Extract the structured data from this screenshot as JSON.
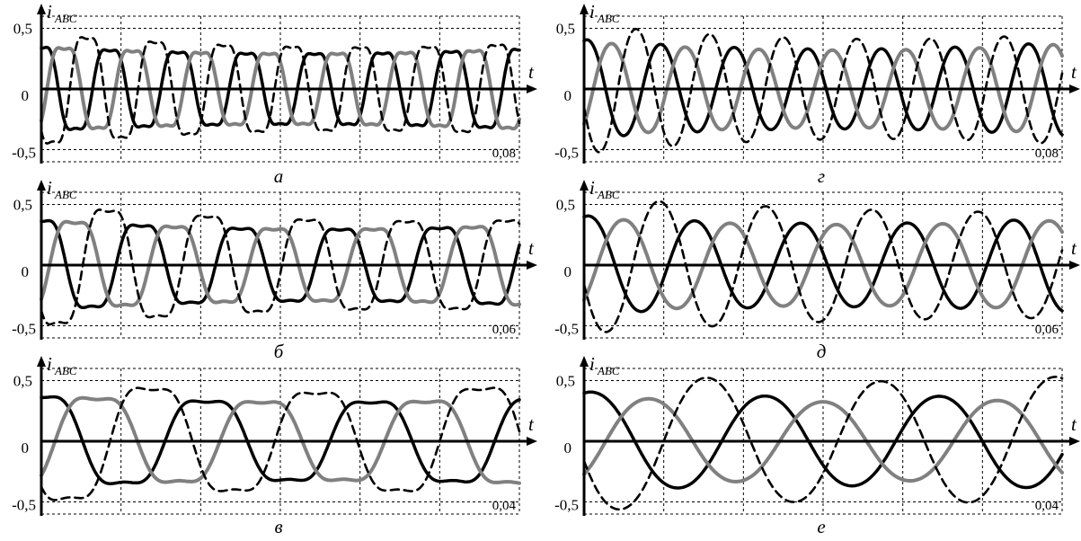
{
  "figure": {
    "ylabel_main": "i",
    "ylabel_sub": "ABC",
    "xlabel": "t",
    "colors": {
      "phase_a": "#000000",
      "phase_b": "#808080",
      "phase_c": "#000000",
      "grid": "#000000"
    }
  },
  "chart_data": [
    {
      "panel": "a",
      "caption": "а",
      "type": "line",
      "xmax_label": "0,08",
      "x_range": [
        0,
        0.08
      ],
      "ylim": [
        -0.6,
        0.6
      ],
      "y_ticks": [
        "0,5",
        "0",
        "-0,5"
      ],
      "grid": true,
      "vertical_divisions": 6,
      "series": [
        {
          "style": "solid-black",
          "periods": 7,
          "phase_deg": 90,
          "amp_start": 0.42,
          "amp_mid": 0.3,
          "amp_end": 0.4,
          "distortion": 0.35
        },
        {
          "style": "solid-gray",
          "periods": 7,
          "phase_deg": -30,
          "amp_start": 0.42,
          "amp_mid": 0.3,
          "amp_end": 0.4,
          "distortion": 0.35
        },
        {
          "style": "dashed-black",
          "periods": 7,
          "phase_deg": 210,
          "amp_start": 0.55,
          "amp_mid": 0.35,
          "amp_end": 0.45,
          "distortion": 0.35
        }
      ]
    },
    {
      "panel": "g",
      "caption": "г",
      "type": "line",
      "xmax_label": "0,08",
      "x_range": [
        0,
        0.08
      ],
      "ylim": [
        -0.6,
        0.6
      ],
      "y_ticks": [
        "0,5",
        "0",
        "-0,5"
      ],
      "grid": true,
      "vertical_divisions": 6,
      "series": [
        {
          "style": "solid-black",
          "periods": 6.5,
          "phase_deg": 75,
          "amp_start": 0.42,
          "amp_mid": 0.27,
          "amp_end": 0.4,
          "distortion": 0.05
        },
        {
          "style": "solid-gray",
          "periods": 6.5,
          "phase_deg": -45,
          "amp_start": 0.4,
          "amp_mid": 0.27,
          "amp_end": 0.38,
          "distortion": 0.05
        },
        {
          "style": "dashed-black",
          "periods": 6.5,
          "phase_deg": 195,
          "amp_start": 0.55,
          "amp_mid": 0.35,
          "amp_end": 0.47,
          "distortion": 0.05
        }
      ]
    },
    {
      "panel": "b",
      "caption": "б",
      "type": "line",
      "xmax_label": "0,06",
      "x_range": [
        0,
        0.06
      ],
      "ylim": [
        -0.6,
        0.6
      ],
      "y_ticks": [
        "0,5",
        "0",
        "-0,5"
      ],
      "grid": true,
      "vertical_divisions": 6,
      "series": [
        {
          "style": "solid-black",
          "periods": 4.8,
          "phase_deg": 90,
          "amp_start": 0.45,
          "amp_mid": 0.3,
          "amp_end": 0.4,
          "distortion": 0.35
        },
        {
          "style": "solid-gray",
          "periods": 4.8,
          "phase_deg": -30,
          "amp_start": 0.45,
          "amp_mid": 0.3,
          "amp_end": 0.4,
          "distortion": 0.35
        },
        {
          "style": "dashed-black",
          "periods": 4.8,
          "phase_deg": 210,
          "amp_start": 0.6,
          "amp_mid": 0.4,
          "amp_end": 0.45,
          "distortion": 0.35
        }
      ]
    },
    {
      "panel": "d",
      "caption": "д",
      "type": "line",
      "xmax_label": "0,06",
      "x_range": [
        0,
        0.06
      ],
      "ylim": [
        -0.6,
        0.6
      ],
      "y_ticks": [
        "0,5",
        "0",
        "-0,5"
      ],
      "grid": true,
      "vertical_divisions": 6,
      "series": [
        {
          "style": "solid-black",
          "periods": 4.5,
          "phase_deg": 75,
          "amp_start": 0.42,
          "amp_mid": 0.3,
          "amp_end": 0.4,
          "distortion": 0.05
        },
        {
          "style": "solid-gray",
          "periods": 4.5,
          "phase_deg": -45,
          "amp_start": 0.4,
          "amp_mid": 0.3,
          "amp_end": 0.38,
          "distortion": 0.05
        },
        {
          "style": "dashed-black",
          "periods": 4.5,
          "phase_deg": 195,
          "amp_start": 0.58,
          "amp_mid": 0.45,
          "amp_end": 0.45,
          "distortion": 0.05
        }
      ]
    },
    {
      "panel": "v",
      "caption": "в",
      "type": "line",
      "xmax_label": "0,04",
      "x_range": [
        0,
        0.04
      ],
      "ylim": [
        -0.6,
        0.6
      ],
      "y_ticks": [
        "0,5",
        "0",
        "-0,5"
      ],
      "grid": true,
      "vertical_divisions": 6,
      "series": [
        {
          "style": "solid-black",
          "periods": 2.9,
          "phase_deg": 90,
          "amp_start": 0.45,
          "amp_mid": 0.35,
          "amp_end": 0.42,
          "distortion": 0.35
        },
        {
          "style": "solid-gray",
          "periods": 2.9,
          "phase_deg": -30,
          "amp_start": 0.45,
          "amp_mid": 0.35,
          "amp_end": 0.42,
          "distortion": 0.35
        },
        {
          "style": "dashed-black",
          "periods": 2.9,
          "phase_deg": 210,
          "amp_start": 0.6,
          "amp_mid": 0.4,
          "amp_end": 0.55,
          "distortion": 0.35
        }
      ]
    },
    {
      "panel": "e",
      "caption": "е",
      "type": "line",
      "xmax_label": "0,04",
      "x_range": [
        0,
        0.04
      ],
      "ylim": [
        -0.6,
        0.6
      ],
      "y_ticks": [
        "0,5",
        "0",
        "-0,5"
      ],
      "grid": true,
      "vertical_divisions": 6,
      "series": [
        {
          "style": "solid-black",
          "periods": 2.75,
          "phase_deg": 75,
          "amp_start": 0.42,
          "amp_mid": 0.35,
          "amp_end": 0.4,
          "distortion": 0.05
        },
        {
          "style": "solid-gray",
          "periods": 2.75,
          "phase_deg": -45,
          "amp_start": 0.38,
          "amp_mid": 0.3,
          "amp_end": 0.36,
          "distortion": 0.05
        },
        {
          "style": "dashed-black",
          "periods": 2.75,
          "phase_deg": 195,
          "amp_start": 0.6,
          "amp_mid": 0.45,
          "amp_end": 0.55,
          "distortion": 0.05
        }
      ]
    }
  ]
}
